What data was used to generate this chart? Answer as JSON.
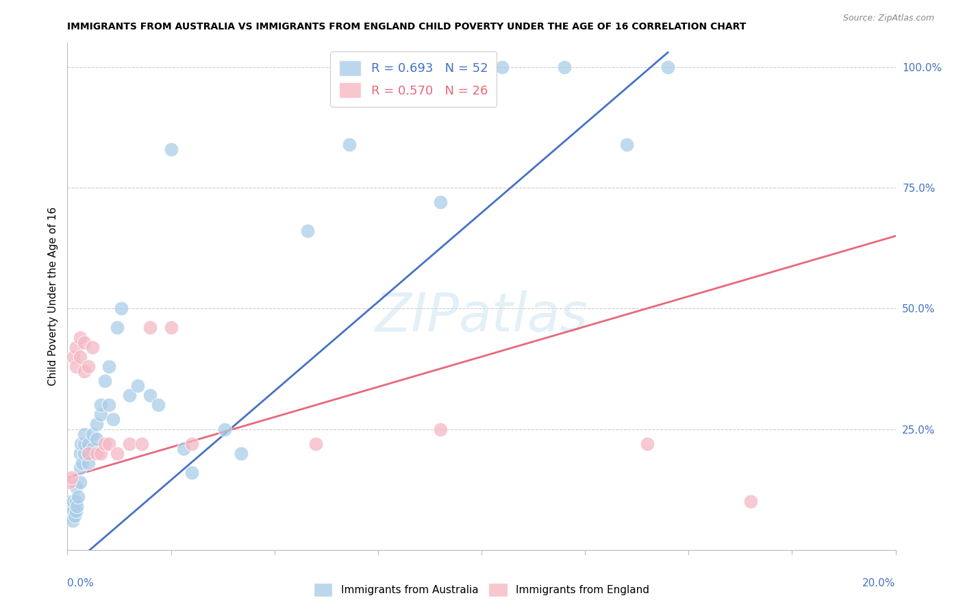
{
  "title": "IMMIGRANTS FROM AUSTRALIA VS IMMIGRANTS FROM ENGLAND CHILD POVERTY UNDER THE AGE OF 16 CORRELATION CHART",
  "source": "Source: ZipAtlas.com",
  "ylabel": "Child Poverty Under the Age of 16",
  "legend_r1": "R = 0.693",
  "legend_n1": "N = 52",
  "legend_r2": "R = 0.570",
  "legend_n2": "N = 26",
  "watermark": "ZIPatlas",
  "blue_color": "#aacde8",
  "pink_color": "#f5b8c4",
  "blue_line_color": "#4472c4",
  "pink_line_color": "#e8677a",
  "australia_x": [
    0.0005,
    0.0008,
    0.001,
    0.0012,
    0.0013,
    0.0015,
    0.0015,
    0.0018,
    0.002,
    0.002,
    0.002,
    0.0022,
    0.0025,
    0.003,
    0.003,
    0.003,
    0.0032,
    0.0035,
    0.004,
    0.004,
    0.004,
    0.005,
    0.005,
    0.005,
    0.006,
    0.006,
    0.007,
    0.007,
    0.008,
    0.008,
    0.009,
    0.01,
    0.01,
    0.011,
    0.012,
    0.013,
    0.015,
    0.017,
    0.02,
    0.022,
    0.025,
    0.028,
    0.03,
    0.038,
    0.042,
    0.058,
    0.068,
    0.09,
    0.105,
    0.12,
    0.135,
    0.145
  ],
  "australia_y": [
    0.08,
    0.1,
    0.07,
    0.09,
    0.06,
    0.08,
    0.1,
    0.07,
    0.13,
    0.1,
    0.08,
    0.09,
    0.11,
    0.14,
    0.17,
    0.2,
    0.22,
    0.18,
    0.2,
    0.22,
    0.24,
    0.2,
    0.22,
    0.18,
    0.21,
    0.24,
    0.26,
    0.23,
    0.28,
    0.3,
    0.35,
    0.3,
    0.38,
    0.27,
    0.46,
    0.5,
    0.32,
    0.34,
    0.32,
    0.3,
    0.83,
    0.21,
    0.16,
    0.25,
    0.2,
    0.66,
    0.84,
    0.72,
    1.0,
    1.0,
    0.84,
    1.0
  ],
  "england_x": [
    0.0005,
    0.001,
    0.0015,
    0.002,
    0.002,
    0.003,
    0.003,
    0.004,
    0.004,
    0.005,
    0.005,
    0.006,
    0.007,
    0.008,
    0.009,
    0.01,
    0.012,
    0.015,
    0.018,
    0.02,
    0.025,
    0.03,
    0.06,
    0.09,
    0.14,
    0.165
  ],
  "england_y": [
    0.14,
    0.15,
    0.4,
    0.38,
    0.42,
    0.4,
    0.44,
    0.37,
    0.43,
    0.2,
    0.38,
    0.42,
    0.2,
    0.2,
    0.22,
    0.22,
    0.2,
    0.22,
    0.22,
    0.46,
    0.46,
    0.22,
    0.22,
    0.25,
    0.22,
    0.1
  ],
  "xlim": [
    0.0,
    0.2
  ],
  "ylim": [
    0.0,
    1.05
  ],
  "blue_trend": [
    0.0,
    -0.04,
    0.145,
    1.03
  ],
  "pink_trend": [
    0.0,
    0.15,
    0.2,
    0.65
  ],
  "right_yticks": [
    0.0,
    0.25,
    0.5,
    0.75,
    1.0
  ],
  "right_yticklabels": [
    "",
    "25.0%",
    "50.0%",
    "75.0%",
    "100.0%"
  ]
}
